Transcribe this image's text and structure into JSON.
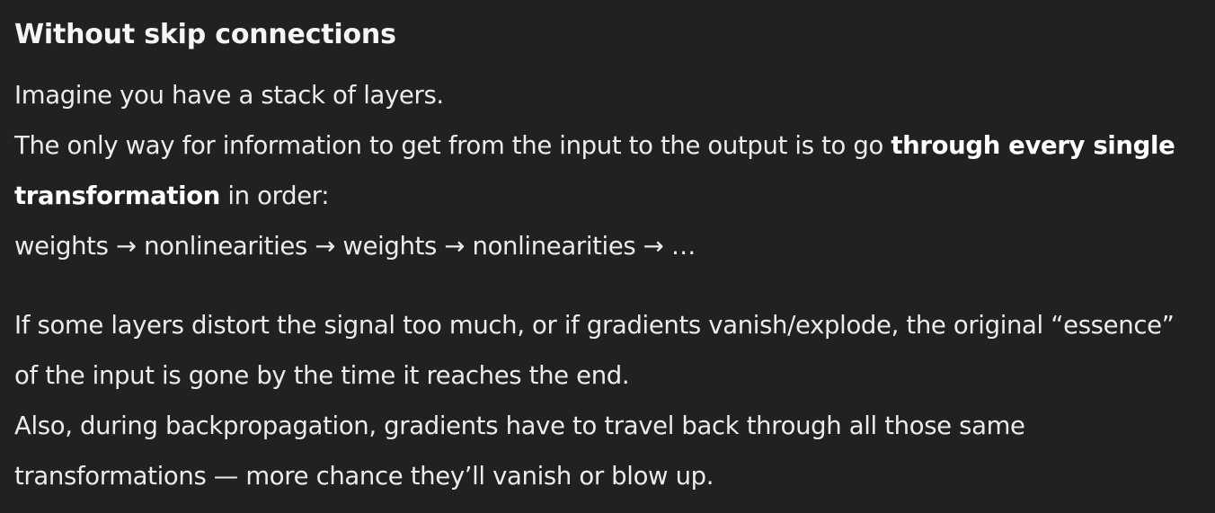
{
  "section": {
    "heading": "Without skip connections"
  },
  "paragraph1": {
    "line1": "Imagine you have a stack of layers.",
    "line2_before": "The only way for information to get from the input to the output is to go ",
    "line2_bold": "through every single transformation",
    "line2_after": " in order:",
    "line3": "weights → nonlinearities → weights → nonlinearities → …"
  },
  "paragraph2": {
    "sentence1": "If some layers distort the signal too much, or if gradients vanish/explode, the original “essence” of the input is gone by the time it reaches the end.",
    "sentence2": "Also, during backpropagation, gradients have to travel back through all those same transformations — more chance they’ll vanish or blow up."
  }
}
